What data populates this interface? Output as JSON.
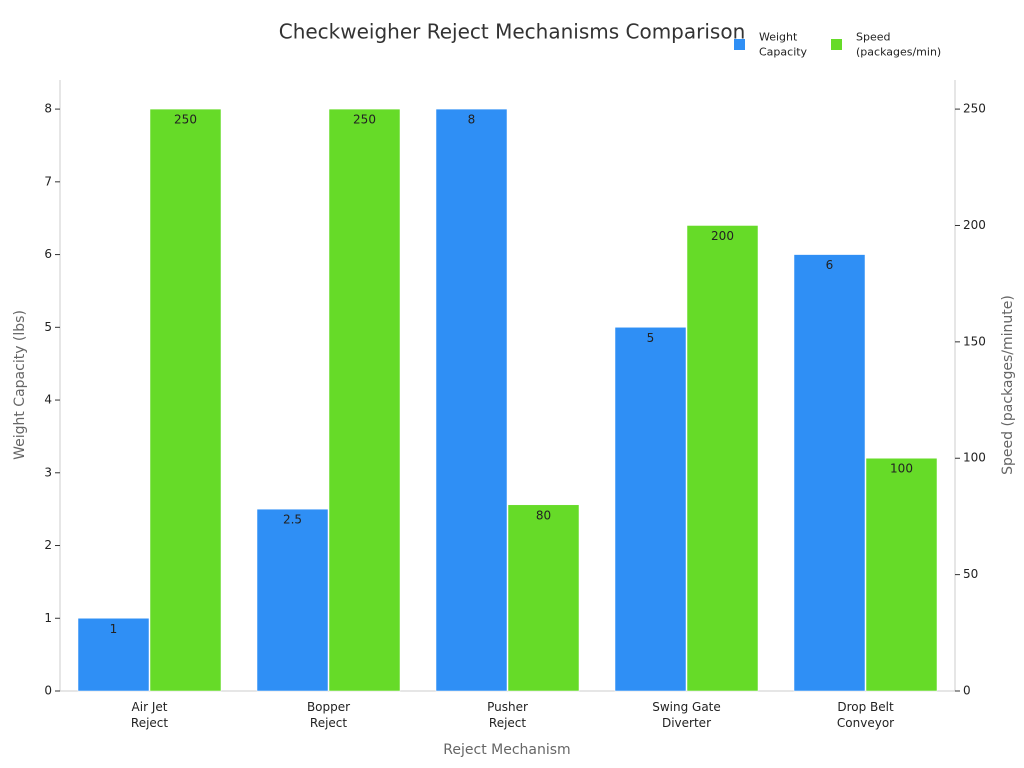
{
  "chart_data": {
    "type": "bar",
    "title": "Checkweigher Reject Mechanisms Comparison",
    "x_label": "Reject Mechanism",
    "y_label": "Weight Capacity (lbs)",
    "y2_label": "Speed (packages/minute)",
    "categories": [
      "Air Jet\nReject",
      "Bopper\nReject",
      "Pusher\nReject",
      "Swing Gate\nDiverter",
      "Drop Belt\nConveyor"
    ],
    "series": [
      {
        "name": "Weight\nCapacity",
        "color": "#2f8ff5",
        "values": [
          1,
          2.5,
          8,
          5,
          6
        ]
      },
      {
        "name": "Speed\n(packages/min)",
        "color": "#66db28",
        "axis": "y2",
        "values": [
          250,
          250,
          80,
          200,
          100
        ]
      }
    ],
    "ylim": [
      0,
      8.4
    ],
    "yticks": [
      0,
      1,
      2,
      3,
      4,
      5,
      6,
      7,
      8
    ],
    "y2lim": [
      0,
      262.5
    ],
    "y2ticks": [
      0,
      50,
      100,
      150,
      200,
      250
    ],
    "grid": false,
    "legend": "top-right"
  }
}
